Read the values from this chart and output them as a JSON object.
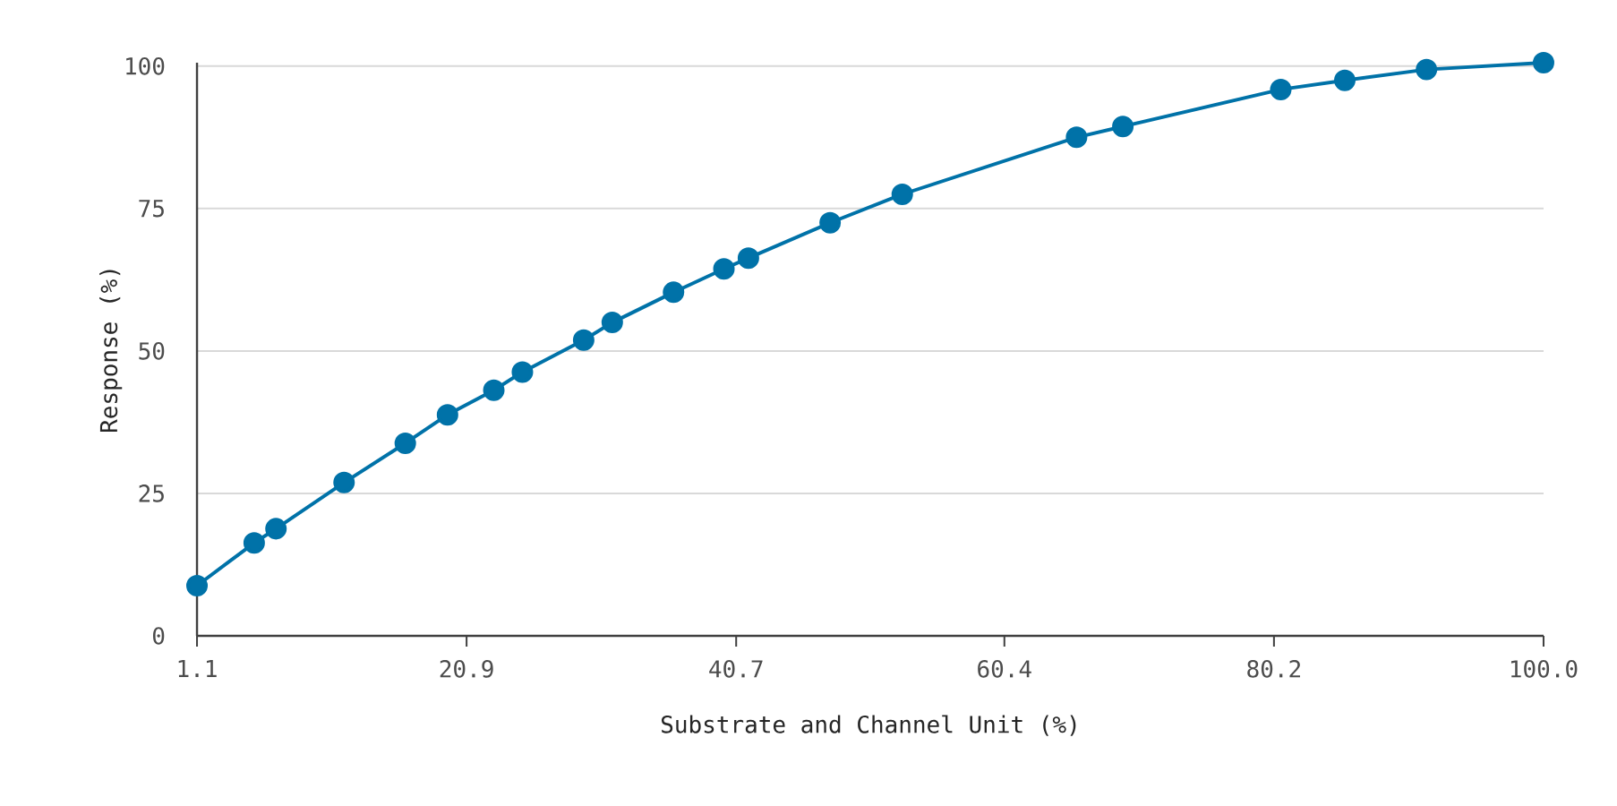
{
  "chart_data": {
    "type": "line",
    "xlabel": "Substrate and Channel Unit (%)",
    "ylabel": "Response (%)",
    "x": [
      1.1,
      5.3,
      6.9,
      11.9,
      16.4,
      19.5,
      22.9,
      25.0,
      29.5,
      31.6,
      36.1,
      39.8,
      41.6,
      47.6,
      52.9,
      65.7,
      69.1,
      80.7,
      85.4,
      91.4,
      100.0
    ],
    "series": [
      {
        "color": "#0072a8",
        "values": [
          8.8,
          16.3,
          18.8,
          26.9,
          33.8,
          38.8,
          43.1,
          46.3,
          51.9,
          55.0,
          60.3,
          64.4,
          66.3,
          72.5,
          77.5,
          87.5,
          89.4,
          95.9,
          97.5,
          99.4,
          100.6
        ]
      }
    ],
    "xlim": [
      1.1,
      100.0
    ],
    "ylim": [
      0,
      100.6
    ],
    "xticks": [
      1.1,
      20.9,
      40.7,
      60.4,
      80.2,
      {
        "value": 100.0,
        "label": "100.0"
      }
    ],
    "yticks": [
      0,
      25,
      50,
      75,
      100
    ],
    "grid": "y",
    "marker": "circle",
    "line_style": "solid"
  }
}
